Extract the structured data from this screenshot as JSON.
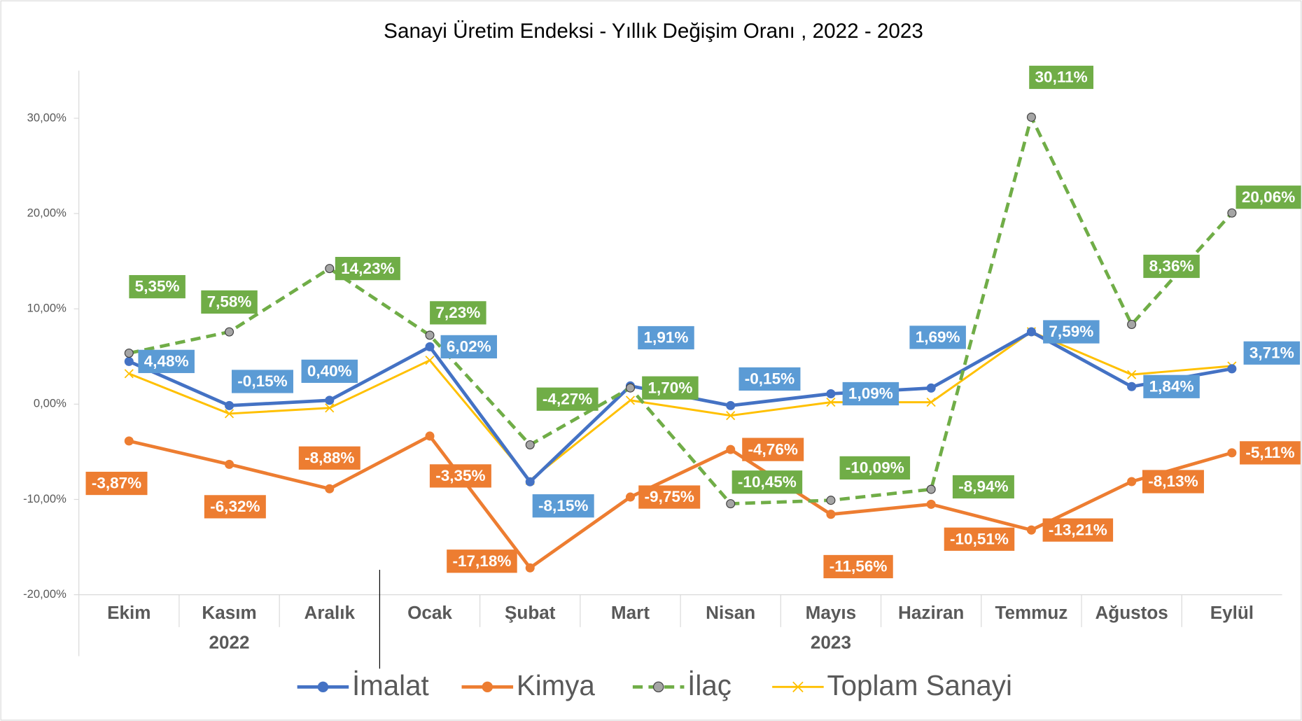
{
  "chart_data": {
    "type": "line",
    "title": "Sanayi Üretim Endeksi - Yıllık Değişim Oranı , 2022 - 2023",
    "categories": [
      "Ekim",
      "Kasım",
      "Aralık",
      "Ocak",
      "Şubat",
      "Mart",
      "Nisan",
      "Mayıs",
      "Haziran",
      "Temmuz",
      "Ağustos",
      "Eylül"
    ],
    "groups": [
      {
        "label": "2022",
        "span": 3
      },
      {
        "label": "2023",
        "span": 9
      }
    ],
    "ylim": [
      -20,
      35
    ],
    "yticks": [
      {
        "value": -20,
        "label": "-20,00%"
      },
      {
        "value": -10,
        "label": "-10,00%"
      },
      {
        "value": 0,
        "label": "0,00%"
      },
      {
        "value": 10,
        "label": "10,00%"
      },
      {
        "value": 20,
        "label": "20,00%"
      },
      {
        "value": 30,
        "label": "30,00%"
      }
    ],
    "grid": false,
    "legend": "bottom",
    "series": [
      {
        "name": "İmalat",
        "color": "#4472c4",
        "label_color": "#5b9bd5",
        "marker": "circle",
        "values": [
          4.48,
          -0.15,
          0.4,
          6.02,
          -8.15,
          1.91,
          -0.15,
          1.09,
          1.69,
          7.59,
          1.84,
          3.71
        ],
        "value_labels": [
          "4,48%",
          "-0,15%",
          "0,40%",
          "6,02%",
          "-8,15%",
          "1,91%",
          "-0,15%",
          "1,09%",
          "1,69%",
          "7,59%",
          "1,84%",
          "3,71%"
        ]
      },
      {
        "name": "Kimya",
        "color": "#ed7d31",
        "label_color": "#ed7d31",
        "marker": "circle",
        "values": [
          -3.87,
          -6.32,
          -8.88,
          -3.35,
          -17.18,
          -9.75,
          -4.76,
          -11.56,
          -10.51,
          -13.21,
          -8.13,
          -5.11
        ],
        "value_labels": [
          "-3,87%",
          "-6,32%",
          "-8,88%",
          "-3,35%",
          "-17,18%",
          "-9,75%",
          "-4,76%",
          "-11,56%",
          "-10,51%",
          "-13,21%",
          "-8,13%",
          "-5,11%"
        ]
      },
      {
        "name": "İlaç",
        "color": "#70ad47",
        "label_color": "#70ad47",
        "marker": "gray-circle",
        "dashed": true,
        "values": [
          5.35,
          7.58,
          14.23,
          7.23,
          -4.27,
          1.7,
          -10.45,
          -10.09,
          -8.94,
          30.11,
          8.36,
          20.06
        ],
        "value_labels": [
          "5,35%",
          "7,58%",
          "14,23%",
          "7,23%",
          "-4,27%",
          "1,70%",
          "-10,45%",
          "-10,09%",
          "-8,94%",
          "30,11%",
          "8,36%",
          "20,06%"
        ]
      },
      {
        "name": "Toplam Sanayi",
        "color": "#ffc000",
        "marker": "x",
        "values": [
          3.2,
          -1.0,
          -0.4,
          4.6,
          -8.0,
          0.4,
          -1.2,
          0.2,
          0.2,
          7.6,
          3.1,
          4.0
        ]
      }
    ]
  }
}
